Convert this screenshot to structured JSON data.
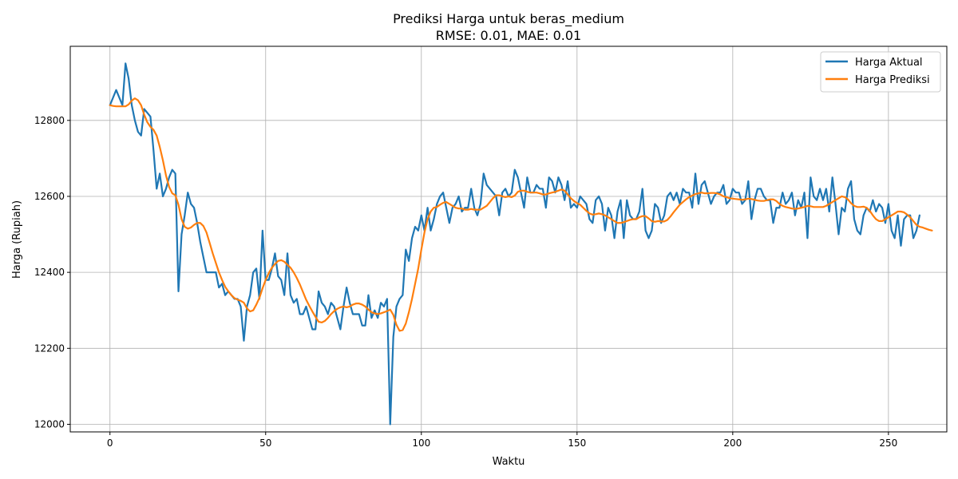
{
  "chart_data": {
    "type": "line",
    "title": "Prediksi Harga untuk beras_medium",
    "subtitle": "RMSE: 0.01, MAE: 0.01",
    "xlabel": "Waktu",
    "ylabel": "Harga (Rupiah)",
    "xlim": [
      -12.75,
      268.75
    ],
    "ylim": [
      11980,
      12995
    ],
    "xticks": [
      0,
      50,
      100,
      150,
      200,
      250
    ],
    "yticks": [
      12000,
      12200,
      12400,
      12600,
      12800
    ],
    "grid": true,
    "legend_position": "top-right",
    "series": [
      {
        "name": "Harga Aktual",
        "color": "#1f77b4",
        "values": [
          12840,
          12860,
          12880,
          12860,
          12840,
          12950,
          12910,
          12840,
          12800,
          12770,
          12760,
          12830,
          12820,
          12810,
          12720,
          12620,
          12660,
          12600,
          12620,
          12650,
          12670,
          12660,
          12350,
          12500,
          12550,
          12610,
          12580,
          12570,
          12530,
          12480,
          12440,
          12400,
          12400,
          12400,
          12400,
          12360,
          12370,
          12340,
          12350,
          12340,
          12330,
          12330,
          12310,
          12220,
          12310,
          12340,
          12400,
          12410,
          12330,
          12510,
          12380,
          12380,
          12410,
          12450,
          12390,
          12380,
          12340,
          12450,
          12340,
          12320,
          12330,
          12290,
          12290,
          12310,
          12280,
          12250,
          12250,
          12350,
          12320,
          12310,
          12290,
          12320,
          12310,
          12280,
          12250,
          12310,
          12360,
          12320,
          12290,
          12290,
          12290,
          12260,
          12260,
          12340,
          12280,
          12300,
          12280,
          12320,
          12310,
          12330,
          12000,
          12230,
          12310,
          12330,
          12340,
          12460,
          12430,
          12490,
          12520,
          12510,
          12550,
          12510,
          12570,
          12510,
          12540,
          12580,
          12600,
          12610,
          12570,
          12530,
          12570,
          12580,
          12600,
          12560,
          12570,
          12570,
          12620,
          12570,
          12550,
          12580,
          12660,
          12630,
          12620,
          12610,
          12600,
          12550,
          12610,
          12620,
          12600,
          12610,
          12670,
          12650,
          12610,
          12570,
          12650,
          12610,
          12610,
          12630,
          12620,
          12620,
          12570,
          12650,
          12640,
          12610,
          12650,
          12630,
          12590,
          12640,
          12570,
          12580,
          12570,
          12600,
          12590,
          12580,
          12540,
          12530,
          12590,
          12600,
          12580,
          12510,
          12570,
          12550,
          12490,
          12560,
          12590,
          12490,
          12590,
          12550,
          12540,
          12540,
          12560,
          12620,
          12510,
          12490,
          12510,
          12580,
          12570,
          12530,
          12550,
          12600,
          12610,
          12590,
          12610,
          12580,
          12620,
          12610,
          12610,
          12570,
          12660,
          12580,
          12630,
          12640,
          12610,
          12580,
          12600,
          12610,
          12610,
          12630,
          12580,
          12590,
          12620,
          12610,
          12610,
          12580,
          12590,
          12640,
          12540,
          12590,
          12620,
          12620,
          12600,
          12590,
          12590,
          12530,
          12570,
          12570,
          12610,
          12580,
          12590,
          12610,
          12550,
          12590,
          12570,
          12610,
          12490,
          12650,
          12600,
          12590,
          12620,
          12590,
          12620,
          12560,
          12650,
          12580,
          12500,
          12570,
          12560,
          12620,
          12640,
          12540,
          12510,
          12500,
          12550,
          12570,
          12560,
          12590,
          12560,
          12580,
          12570,
          12530,
          12580,
          12510,
          12490,
          12550,
          12470,
          12540,
          12550,
          12550,
          12490,
          12510,
          12550
        ]
      },
      {
        "name": "Harga Prediksi",
        "color": "#ff7f0e",
        "values": [
          12840,
          12838,
          12837,
          12837,
          12837,
          12837,
          12842,
          12852,
          12858,
          12853,
          12840,
          12815,
          12795,
          12783,
          12775,
          12760,
          12730,
          12695,
          12655,
          12625,
          12608,
          12603,
          12578,
          12540,
          12520,
          12515,
          12518,
          12525,
          12530,
          12530,
          12522,
          12505,
          12478,
          12450,
          12425,
          12400,
          12380,
          12362,
          12350,
          12340,
          12332,
          12328,
          12325,
          12320,
          12305,
          12297,
          12300,
          12315,
          12333,
          12358,
          12380,
          12398,
          12412,
          12422,
          12430,
          12432,
          12428,
          12420,
          12412,
          12400,
          12385,
          12368,
          12348,
          12328,
          12312,
          12297,
          12283,
          12270,
          12268,
          12272,
          12280,
          12290,
          12298,
          12304,
          12308,
          12310,
          12308,
          12310,
          12315,
          12318,
          12318,
          12315,
          12310,
          12302,
          12295,
          12292,
          12290,
          12292,
          12295,
          12298,
          12302,
          12288,
          12262,
          12246,
          12248,
          12265,
          12295,
          12330,
          12370,
          12410,
          12460,
          12505,
          12540,
          12560,
          12570,
          12572,
          12578,
          12583,
          12585,
          12580,
          12575,
          12570,
          12568,
          12568,
          12565,
          12565,
          12567,
          12565,
          12565,
          12565,
          12570,
          12575,
          12585,
          12595,
          12603,
          12603,
          12600,
          12598,
          12600,
          12598,
          12602,
          12612,
          12615,
          12615,
          12612,
          12610,
          12610,
          12610,
          12608,
          12605,
          12605,
          12608,
          12610,
          12612,
          12615,
          12618,
          12615,
          12605,
          12595,
          12588,
          12582,
          12578,
          12570,
          12562,
          12555,
          12552,
          12553,
          12555,
          12553,
          12550,
          12545,
          12540,
          12535,
          12530,
          12530,
          12532,
          12535,
          12538,
          12540,
          12540,
          12545,
          12548,
          12548,
          12542,
          12535,
          12533,
          12535,
          12534,
          12534,
          12538,
          12547,
          12558,
          12568,
          12578,
          12585,
          12592,
          12598,
          12602,
          12606,
          12608,
          12610,
          12608,
          12608,
          12609,
          12609,
          12608,
          12605,
          12600,
          12598,
          12595,
          12594,
          12593,
          12592,
          12591,
          12592,
          12594,
          12593,
          12591,
          12589,
          12588,
          12588,
          12590,
          12592,
          12592,
          12588,
          12580,
          12575,
          12572,
          12570,
          12568,
          12567,
          12568,
          12570,
          12572,
          12575,
          12574,
          12572,
          12572,
          12572,
          12572,
          12575,
          12580,
          12585,
          12590,
          12595,
          12600,
          12598,
          12592,
          12582,
          12575,
          12572,
          12572,
          12573,
          12570,
          12562,
          12550,
          12540,
          12535,
          12535,
          12540,
          12545,
          12550,
          12555,
          12560,
          12560,
          12558,
          12552,
          12545,
          12535,
          12525,
          12520,
          12518,
          12515,
          12512,
          12510
        ]
      }
    ]
  }
}
